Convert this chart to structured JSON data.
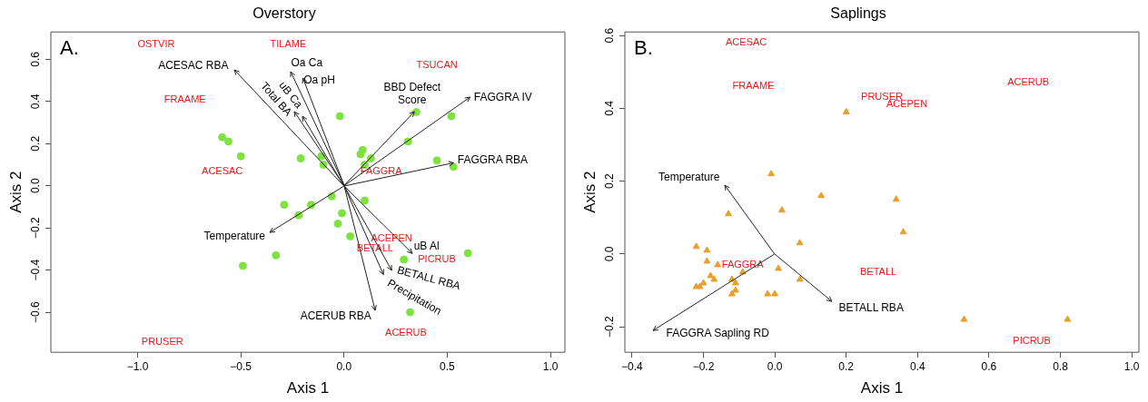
{
  "chart_data": [
    {
      "type": "scatter",
      "title": "Overstory",
      "xlabel": "Axis 1",
      "ylabel": "Axis 2",
      "xlim": [
        -1.42,
        1.07
      ],
      "ylim": [
        -0.79,
        0.73
      ],
      "xticks": [
        {
          "value": -1,
          "label": "−1.0"
        },
        {
          "value": -0.5,
          "label": "−0.5"
        },
        {
          "value": 0,
          "label": "0.0"
        },
        {
          "value": 0.5,
          "label": "0.5"
        },
        {
          "value": 1,
          "label": "1.0"
        }
      ],
      "yticks": [
        {
          "value": -0.6,
          "label": "−0.6"
        },
        {
          "value": -0.4,
          "label": "−0.4"
        },
        {
          "value": -0.2,
          "label": "−0.2"
        },
        {
          "value": 0,
          "label": "0.0"
        },
        {
          "value": 0.2,
          "label": "0.2"
        },
        {
          "value": 0.4,
          "label": "0.4"
        },
        {
          "value": 0.6,
          "label": "0.6"
        }
      ],
      "grid": false,
      "legend": false,
      "marker": "circle",
      "annotations": [
        "A.",
        "ACESAC RBA",
        "Oa Ca",
        "Oa pH",
        "uB Ca",
        "Total BA",
        "BBD Defect Score",
        "FAGGRA IV",
        "FAGGRA RBA",
        "uB Al",
        "BETALL RBA",
        "Precipitation",
        "ACERUB RBA",
        "Temperature",
        "OSTVIR",
        "TILAME",
        "TSUCAN",
        "FRAAME",
        "ACESAC",
        "FAGGRA",
        "ACEPEN",
        "BETALL",
        "PICRUB",
        "ACERUB",
        "PRUSER"
      ],
      "series": [
        {
          "type": "scatter",
          "color": "#7ee33f",
          "x": [
            -0.59,
            -0.56,
            -0.5,
            -0.21,
            -0.11,
            -0.1,
            -0.29,
            -0.16,
            -0.22,
            -0.33,
            -0.49,
            -0.02,
            0.52,
            0.31,
            0.09,
            0.08,
            0.13,
            0.1,
            0.45,
            0.53,
            -0.06,
            0.1,
            -0.01,
            -0.03,
            0.03,
            0.29,
            0.6,
            0.32,
            0.35
          ],
          "values": [
            0.23,
            0.21,
            0.14,
            0.13,
            0.14,
            0.1,
            -0.09,
            -0.09,
            -0.14,
            -0.33,
            -0.38,
            0.33,
            0.33,
            0.21,
            0.17,
            0.15,
            0.13,
            0.1,
            0.12,
            0.09,
            -0.05,
            -0.07,
            -0.13,
            -0.18,
            -0.24,
            -0.35,
            -0.32,
            -0.6,
            0.35
          ]
        }
      ]
    },
    {
      "type": "scatter",
      "title": "Saplings",
      "xlabel": "Axis 1",
      "ylabel": "Axis 2",
      "xlim": [
        -0.42,
        1.02
      ],
      "ylim": [
        -0.27,
        0.61
      ],
      "xticks": [
        {
          "value": -0.4,
          "label": "−0.4"
        },
        {
          "value": -0.2,
          "label": "−0.2"
        },
        {
          "value": 0,
          "label": "0.0"
        },
        {
          "value": 0.2,
          "label": "0.2"
        },
        {
          "value": 0.4,
          "label": "0.4"
        },
        {
          "value": 0.6,
          "label": "0.6"
        },
        {
          "value": 0.8,
          "label": "0.8"
        },
        {
          "value": 1,
          "label": "1.0"
        }
      ],
      "yticks": [
        {
          "value": -0.2,
          "label": "−0.2"
        },
        {
          "value": 0,
          "label": "0.0"
        },
        {
          "value": 0.2,
          "label": "0.2"
        },
        {
          "value": 0.4,
          "label": "0.4"
        },
        {
          "value": 0.6,
          "label": "0.6"
        }
      ],
      "grid": false,
      "legend": false,
      "marker": "triangle",
      "annotations": [
        "B.",
        "Temperature",
        "BETALL RBA",
        "FAGGRA Sapling RD",
        "ACESAC",
        "FRAAME",
        "PRUSER",
        "ACEPEN",
        "ACERUB",
        "BETALL",
        "PICRUB",
        "FAGGRA"
      ],
      "series": [
        {
          "type": "scatter",
          "color": "#e8a02a",
          "x": [
            0.2,
            -0.01,
            0.13,
            0.02,
            -0.13,
            0.07,
            -0.22,
            -0.19,
            -0.19,
            -0.16,
            0.01,
            -0.09,
            -0.18,
            0.07,
            -0.17,
            -0.12,
            -0.22,
            -0.2,
            -0.21,
            -0.11,
            -0.11,
            -0.12,
            -0.02,
            0,
            0.34,
            0.36,
            0.53,
            0.82
          ],
          "values": [
            0.39,
            0.22,
            0.16,
            0.12,
            0.11,
            0.03,
            0.02,
            0.01,
            -0.02,
            -0.03,
            -0.04,
            -0.05,
            -0.06,
            -0.07,
            -0.07,
            -0.07,
            -0.09,
            -0.08,
            -0.09,
            -0.08,
            -0.1,
            -0.11,
            -0.11,
            -0.11,
            0.15,
            0.06,
            -0.18,
            -0.18
          ]
        }
      ]
    }
  ]
}
